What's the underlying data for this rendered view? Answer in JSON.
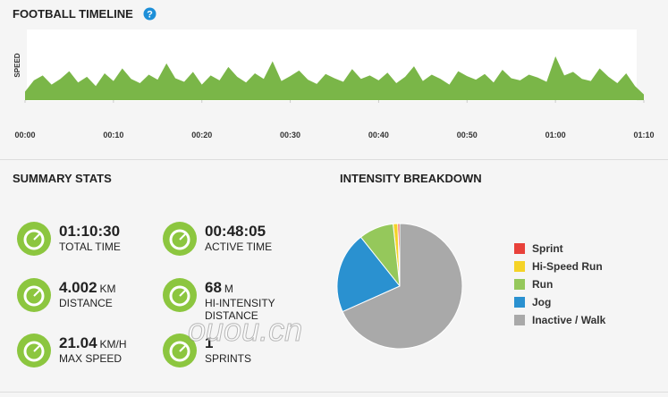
{
  "timeline": {
    "chart_data": {
      "type": "area",
      "title": "FOOTBALL TIMELINE",
      "y_label": "SPEED",
      "color": "#7ab648",
      "x": [
        0,
        1,
        2,
        3,
        4,
        5,
        6,
        7,
        8,
        9,
        10,
        11,
        12,
        13,
        14,
        15,
        16,
        17,
        18,
        19,
        20,
        21,
        22,
        23,
        24,
        25,
        26,
        27,
        28,
        29,
        30,
        31,
        32,
        33,
        34,
        35,
        36,
        37,
        38,
        39,
        40,
        41,
        42,
        43,
        44,
        45,
        46,
        47,
        48,
        49,
        50,
        51,
        52,
        53,
        54,
        55,
        56,
        57,
        58,
        59,
        60,
        61,
        62,
        63,
        64,
        65,
        66,
        67,
        68,
        69,
        70
      ],
      "series": [
        {
          "name": "Speed",
          "color": "#7ab648",
          "values": [
            12,
            28,
            35,
            22,
            30,
            41,
            25,
            33,
            20,
            38,
            27,
            45,
            30,
            24,
            36,
            29,
            52,
            31,
            26,
            40,
            22,
            35,
            28,
            47,
            33,
            25,
            38,
            30,
            55,
            27,
            34,
            42,
            29,
            23,
            37,
            31,
            26,
            44,
            30,
            35,
            28,
            39,
            24,
            33,
            48,
            27,
            36,
            30,
            22,
            41,
            34,
            29,
            37,
            25,
            43,
            31,
            28,
            36,
            32,
            26,
            62,
            35,
            40,
            30,
            27,
            45,
            33,
            24,
            38,
            20,
            8
          ]
        }
      ],
      "xlim": [
        0,
        70
      ],
      "ylim": [
        0,
        100
      ],
      "xticks": [
        {
          "value": 0,
          "label": "00:00"
        },
        {
          "value": 10,
          "label": "00:10"
        },
        {
          "value": 20,
          "label": "00:20"
        },
        {
          "value": 30,
          "label": "00:30"
        },
        {
          "value": 40,
          "label": "00:40"
        },
        {
          "value": 50,
          "label": "00:50"
        },
        {
          "value": 60,
          "label": "01:00"
        },
        {
          "value": 70,
          "label": "01:10"
        }
      ]
    }
  },
  "summary": {
    "title": "SUMMARY STATS",
    "stats": [
      {
        "value": "01:10:30",
        "unit": "",
        "label": "TOTAL TIME"
      },
      {
        "value": "00:48:05",
        "unit": "",
        "label": "ACTIVE TIME"
      },
      {
        "value": "4.002",
        "unit": "KM",
        "label": "DISTANCE"
      },
      {
        "value": "68",
        "unit": "M",
        "label": "HI-INTENSITY DISTANCE"
      },
      {
        "value": "21.04",
        "unit": "KM/H",
        "label": "MAX SPEED"
      },
      {
        "value": "1",
        "unit": "",
        "label": "SPRINTS"
      }
    ]
  },
  "intensity": {
    "chart_data": {
      "type": "pie",
      "title": "INTENSITY BREAKDOWN",
      "categories": [
        "Sprint",
        "Hi-Speed Run",
        "Run",
        "Jog",
        "Inactive / Walk"
      ],
      "values": [
        0.5,
        1.2,
        9,
        21,
        68.3
      ],
      "colors": [
        "#e8413a",
        "#f5d327",
        "#95c85b",
        "#2a91d0",
        "#a9a9a9"
      ]
    }
  },
  "watermark": "ouou.cn"
}
